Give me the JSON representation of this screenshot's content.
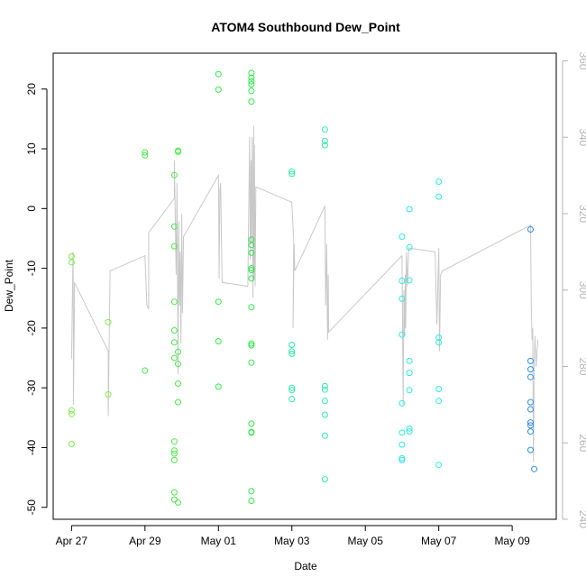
{
  "chart_data": {
    "type": "scatter",
    "title": "ATOM4 Southbound Dew_Point",
    "xlabel": "Date",
    "ylabel": "Dew_Point",
    "x_tick_labels": [
      "Apr 27",
      "Apr 29",
      "May 01",
      "May 03",
      "May 05",
      "May 07",
      "May 09"
    ],
    "x_tick_days": [
      0,
      2,
      4,
      6,
      8,
      10,
      12
    ],
    "y_ticks": [
      -50,
      -40,
      -30,
      -20,
      -10,
      0,
      10,
      20
    ],
    "ylim": [
      -52,
      26
    ],
    "xlim_days": [
      -0.5,
      13.2
    ],
    "right_axis": {
      "ticks": [
        240,
        260,
        280,
        300,
        320,
        340,
        360
      ],
      "ylim": [
        240,
        362
      ],
      "color": "#b4b4b4"
    },
    "grid": false,
    "legend": "none",
    "colors": {
      "track_line": "#c8c8c8",
      "axis_right": "#b4b4b4"
    },
    "series": [
      {
        "color": "#7fe84a",
        "points": [
          [
            0.0,
            -8
          ],
          [
            0.0,
            -9
          ],
          [
            0.0,
            -33.8
          ],
          [
            0.0,
            -34.4
          ],
          [
            0.0,
            -39.4
          ],
          [
            1.0,
            -19
          ],
          [
            1.0,
            -31.1
          ]
        ]
      },
      {
        "color": "#4ce84a",
        "points": [
          [
            2.0,
            9.4
          ],
          [
            2.0,
            8.9
          ],
          [
            2.0,
            -27.1
          ],
          [
            2.8,
            5.6
          ],
          [
            2.8,
            -3
          ],
          [
            2.8,
            -6.3
          ],
          [
            2.8,
            -15.6
          ],
          [
            2.8,
            -20.4
          ],
          [
            2.8,
            -22.4
          ],
          [
            2.8,
            -25
          ],
          [
            2.8,
            -39
          ],
          [
            2.8,
            -40.5
          ],
          [
            2.8,
            -41
          ],
          [
            2.8,
            -42.1
          ],
          [
            2.8,
            -47.5
          ],
          [
            2.8,
            -48.7
          ],
          [
            2.9,
            9.7
          ],
          [
            2.9,
            9.5
          ],
          [
            2.9,
            -24
          ],
          [
            2.9,
            -26
          ],
          [
            2.9,
            -29.3
          ],
          [
            2.9,
            -32.4
          ],
          [
            2.9,
            -49.2
          ]
        ]
      },
      {
        "color": "#2fe84a",
        "points": [
          [
            4.0,
            22.5
          ],
          [
            4.0,
            19.9
          ],
          [
            4.0,
            -15.6
          ],
          [
            4.0,
            -22.2
          ],
          [
            4.0,
            -29.8
          ],
          [
            4.9,
            22.7
          ],
          [
            4.9,
            21.9
          ],
          [
            4.9,
            21.3
          ],
          [
            4.9,
            20.8
          ],
          [
            4.9,
            19.7
          ],
          [
            4.9,
            17.9
          ],
          [
            4.9,
            -5.2
          ],
          [
            4.9,
            -6.1
          ],
          [
            4.9,
            -7.4
          ],
          [
            4.9,
            -10
          ],
          [
            4.9,
            -10.3
          ],
          [
            4.9,
            -11.7
          ],
          [
            4.9,
            -16.5
          ],
          [
            4.9,
            -22.6
          ],
          [
            4.9,
            -22.9
          ],
          [
            4.9,
            -25.8
          ],
          [
            4.9,
            -36
          ],
          [
            4.9,
            -37.4
          ],
          [
            4.9,
            -37.5
          ],
          [
            4.9,
            -47.3
          ],
          [
            4.9,
            -48.9
          ]
        ]
      },
      {
        "color": "#2ee8a8",
        "points": [
          [
            6.0,
            6.2
          ],
          [
            6.0,
            5.8
          ],
          [
            6.0,
            -22.8
          ],
          [
            6.0,
            -23.9
          ],
          [
            6.0,
            -24.3
          ],
          [
            6.0,
            -30
          ],
          [
            6.0,
            -30.4
          ],
          [
            6.0,
            -31.9
          ],
          [
            6.9,
            13.2
          ],
          [
            6.9,
            11.3
          ],
          [
            6.9,
            10.6
          ],
          [
            6.9,
            -29.7
          ],
          [
            6.9,
            -30.3
          ],
          [
            6.9,
            -32.2
          ],
          [
            6.9,
            -34.5
          ],
          [
            6.9,
            -38
          ],
          [
            6.9,
            -45.3
          ]
        ]
      },
      {
        "color": "#2ee8e0",
        "points": [
          [
            9.0,
            -4.7
          ],
          [
            9.0,
            -12.1
          ],
          [
            9.0,
            -15.1
          ],
          [
            9.0,
            -21.1
          ],
          [
            9.0,
            -32.6
          ],
          [
            9.0,
            -37.5
          ],
          [
            9.0,
            -39.5
          ],
          [
            9.0,
            -41.8
          ],
          [
            9.0,
            -42.1
          ],
          [
            9.2,
            -0.1
          ],
          [
            9.2,
            -6.5
          ],
          [
            9.2,
            -12
          ],
          [
            9.2,
            -25.5
          ],
          [
            9.2,
            -27.5
          ],
          [
            9.2,
            -30.4
          ],
          [
            9.2,
            -36.8
          ],
          [
            9.2,
            -37.3
          ],
          [
            10.0,
            4.5
          ],
          [
            10.0,
            2
          ],
          [
            10.0,
            -21.6
          ],
          [
            10.0,
            -22.4
          ],
          [
            10.0,
            -30.2
          ],
          [
            10.0,
            -32.2
          ],
          [
            10.0,
            -42.9
          ]
        ]
      },
      {
        "color": "#2e8ee8",
        "points": [
          [
            12.5,
            -3.5
          ],
          [
            12.5,
            -25.5
          ],
          [
            12.5,
            -26.9
          ],
          [
            12.5,
            -28.2
          ],
          [
            12.5,
            -32.4
          ],
          [
            12.5,
            -33.6
          ],
          [
            12.5,
            -35.8
          ],
          [
            12.5,
            -36.3
          ],
          [
            12.5,
            -37.3
          ],
          [
            12.5,
            -40.4
          ],
          [
            12.6,
            -43.6
          ]
        ]
      }
    ],
    "track_line": {
      "axis": "right",
      "color": "#c8c8c8",
      "points": [
        [
          0.0,
          282
        ],
        [
          0.04,
          310
        ],
        [
          0.05,
          292
        ],
        [
          0.05,
          287
        ],
        [
          0.05,
          270
        ],
        [
          0.08,
          296
        ],
        [
          0.08,
          302
        ],
        [
          1.0,
          284
        ],
        [
          1.0,
          267
        ],
        [
          1.05,
          305
        ],
        [
          2.0,
          309
        ],
        [
          2.05,
          296
        ],
        [
          2.1,
          295
        ],
        [
          2.1,
          315
        ],
        [
          2.8,
          324
        ],
        [
          2.8,
          334
        ],
        [
          2.85,
          304
        ],
        [
          2.87,
          328
        ],
        [
          2.9,
          278
        ],
        [
          2.92,
          318
        ],
        [
          2.94,
          296
        ],
        [
          2.96,
          310
        ],
        [
          2.98,
          286
        ],
        [
          3.0,
          320
        ],
        [
          3.02,
          294
        ],
        [
          3.05,
          314
        ],
        [
          4.0,
          330
        ],
        [
          4.02,
          303
        ],
        [
          4.04,
          326
        ],
        [
          4.06,
          328
        ],
        [
          4.1,
          302
        ],
        [
          4.8,
          301
        ],
        [
          4.85,
          340
        ],
        [
          4.87,
          308
        ],
        [
          4.89,
          334
        ],
        [
          4.9,
          312
        ],
        [
          4.92,
          340
        ],
        [
          4.94,
          298
        ],
        [
          4.96,
          343
        ],
        [
          4.97,
          303
        ],
        [
          4.98,
          338
        ],
        [
          5.0,
          301
        ],
        [
          5.02,
          327
        ],
        [
          6.0,
          323
        ],
        [
          6.05,
          313
        ],
        [
          6.03,
          290
        ],
        [
          6.06,
          312
        ],
        [
          6.08,
          305
        ],
        [
          6.9,
          322
        ],
        [
          6.92,
          296
        ],
        [
          6.95,
          312
        ],
        [
          6.97,
          287
        ],
        [
          6.99,
          304
        ],
        [
          7.0,
          289
        ],
        [
          9.0,
          309
        ],
        [
          9.03,
          270
        ],
        [
          9.05,
          300
        ],
        [
          9.07,
          288
        ],
        [
          9.09,
          304
        ],
        [
          9.1,
          290
        ],
        [
          9.12,
          310
        ],
        [
          9.15,
          301
        ],
        [
          9.18,
          311
        ],
        [
          9.9,
          310
        ],
        [
          9.95,
          291
        ],
        [
          10.0,
          311
        ],
        [
          10.02,
          284
        ],
        [
          10.05,
          304
        ],
        [
          10.1,
          305
        ],
        [
          12.5,
          317
        ],
        [
          12.52,
          296
        ],
        [
          12.54,
          287
        ],
        [
          12.56,
          290
        ],
        [
          12.58,
          255
        ],
        [
          12.6,
          282
        ],
        [
          12.62,
          288
        ],
        [
          12.65,
          280
        ],
        [
          12.7,
          287
        ]
      ]
    }
  }
}
